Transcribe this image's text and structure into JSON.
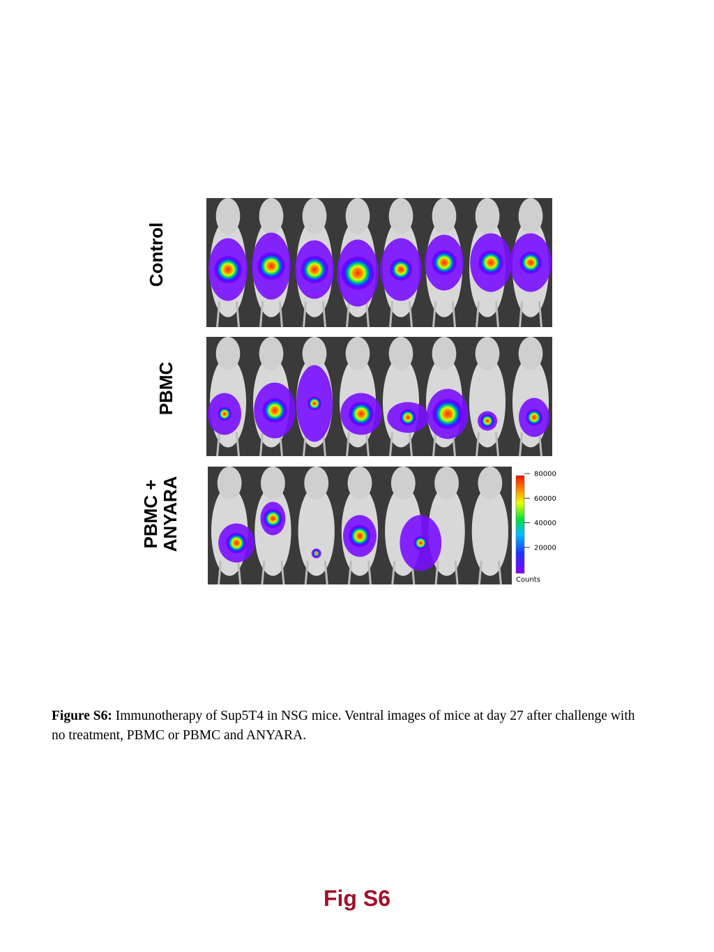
{
  "panels": [
    {
      "label_lines": [
        "Control"
      ]
    },
    {
      "label_lines": [
        "PBMC"
      ]
    },
    {
      "label_lines": [
        "PBMC +",
        "ANYARA"
      ]
    }
  ],
  "colorbar": {
    "ticks": [
      80000,
      60000,
      40000,
      20000
    ],
    "unit": "Counts"
  },
  "caption": {
    "label": "Figure S6:",
    "text": "Immunotherapy of Sup5T4 in NSG mice. Ventral images of mice at day 27 after challenge with no treatment, PBMC or PBMC and ANYARA."
  },
  "footer": "Fig S6"
}
